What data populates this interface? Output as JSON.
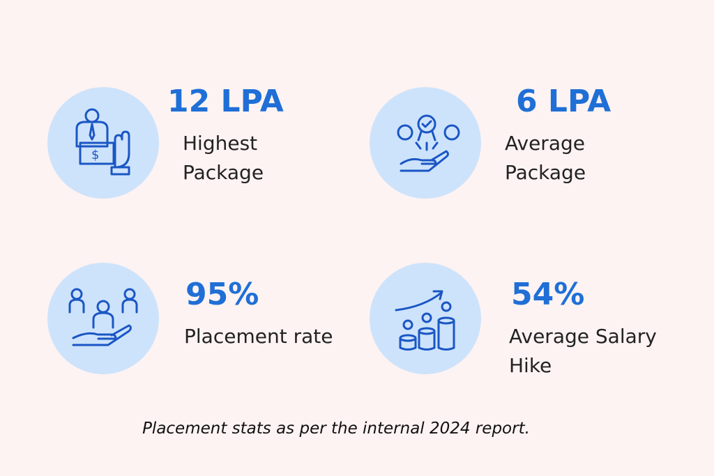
{
  "stats": [
    {
      "value": "12 LPA",
      "label_lines": [
        "Highest",
        "Package"
      ]
    },
    {
      "value": "6 LPA",
      "label_lines": [
        "Average",
        "Package"
      ]
    },
    {
      "value": "95%",
      "label_lines": [
        "Placement rate"
      ]
    },
    {
      "value": "54%",
      "label_lines": [
        "Average Salary",
        "Hike"
      ]
    }
  ],
  "footnote": "Placement stats as per the internal 2024 report."
}
